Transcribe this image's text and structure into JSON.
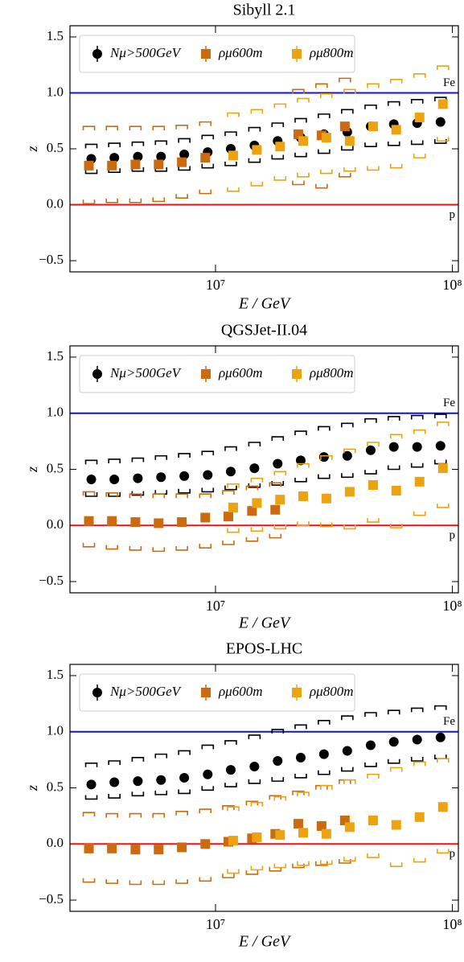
{
  "chart_data": [
    {
      "type": "scatter",
      "title": "Sibyll 2.1",
      "xlabel": "E / GeV",
      "ylabel": "z",
      "xscale": "log",
      "x": [
        2990000,
        3740000,
        4700000,
        5890000,
        7380000,
        9270000,
        11600000,
        14600000,
        18300000,
        22900000,
        28700000,
        36000000,
        45200000,
        56600000,
        71000000,
        89100000
      ],
      "xlim": [
        2430000,
        106000000
      ],
      "xticks": [
        {
          "value": 10000000,
          "label": "10⁷"
        },
        {
          "value": 100000000,
          "label": "10⁸"
        }
      ],
      "ylim": [
        -0.6,
        1.6
      ],
      "yticks": [
        {
          "value": -0.5,
          "label": "−0.5"
        },
        {
          "value": 0,
          "label": "0.0"
        },
        0.5,
        {
          "value": 1,
          "label": "1.0"
        },
        1.5
      ],
      "legend": "upper left",
      "ref_lines": [
        {
          "value": 1,
          "label": "Fe",
          "color": "#1010e0"
        },
        {
          "value": 0,
          "label": "p",
          "color": "#f01010"
        }
      ],
      "series": [
        {
          "name": "Nμ>500GeV",
          "color": "#000000",
          "marker": "circle",
          "values": [
            0.41,
            0.42,
            0.43,
            0.43,
            0.45,
            0.47,
            0.5,
            0.53,
            0.57,
            0.6,
            0.63,
            0.65,
            0.7,
            0.72,
            0.73,
            0.74
          ],
          "sys_high": [
            0.54,
            0.55,
            0.56,
            0.57,
            0.59,
            0.62,
            0.65,
            0.69,
            0.73,
            0.77,
            0.81,
            0.85,
            0.89,
            0.92,
            0.94,
            0.96
          ],
          "sys_low": [
            0.28,
            0.29,
            0.3,
            0.3,
            0.31,
            0.33,
            0.35,
            0.38,
            0.41,
            0.43,
            0.46,
            0.49,
            0.52,
            0.53,
            0.54,
            0.55
          ]
        },
        {
          "name": "ρμ600m",
          "color": "#cc6a10",
          "marker": "square",
          "values": [
            0.35,
            0.35,
            0.36,
            0.36,
            0.38,
            0.42,
            null,
            null,
            null,
            0.63,
            0.62,
            0.7,
            null,
            null,
            null,
            null
          ],
          "sys_high": [
            0.7,
            0.7,
            0.7,
            0.7,
            0.71,
            0.74,
            null,
            null,
            null,
            1.03,
            1.08,
            1.13,
            null,
            null,
            null,
            null
          ],
          "sys_low": [
            0.01,
            0.02,
            0.02,
            0.03,
            0.06,
            0.1,
            null,
            null,
            null,
            0.18,
            0.15,
            0.25,
            null,
            null,
            null,
            null
          ]
        },
        {
          "name": "ρμ800m",
          "color": "#eba312",
          "marker": "square",
          "values": [
            null,
            null,
            null,
            null,
            null,
            null,
            0.44,
            0.49,
            0.52,
            0.57,
            0.6,
            0.57,
            0.7,
            0.67,
            0.78,
            0.9
          ],
          "sys_high": [
            null,
            null,
            null,
            null,
            null,
            null,
            0.82,
            0.85,
            0.9,
            0.95,
            0.99,
            1.03,
            1.08,
            1.12,
            1.17,
            1.24
          ],
          "sys_low": [
            null,
            null,
            null,
            null,
            null,
            null,
            0.12,
            0.17,
            0.22,
            0.25,
            0.28,
            0.3,
            0.31,
            0.33,
            0.42,
            0.57
          ]
        }
      ]
    },
    {
      "type": "scatter",
      "title": "QGSJet-II.04",
      "xlabel": "E / GeV",
      "ylabel": "z",
      "xscale": "log",
      "x": [
        2990000,
        3740000,
        4700000,
        5890000,
        7380000,
        9270000,
        11600000,
        14600000,
        18300000,
        22900000,
        28700000,
        36000000,
        45200000,
        56600000,
        71000000,
        89100000
      ],
      "xlim": [
        2430000,
        106000000
      ],
      "xticks": [
        {
          "value": 10000000,
          "label": "10⁷"
        },
        {
          "value": 100000000,
          "label": "10⁸"
        }
      ],
      "ylim": [
        -0.6,
        1.6
      ],
      "yticks": [
        {
          "value": -0.5,
          "label": "−0.5"
        },
        {
          "value": 0,
          "label": "0.0"
        },
        0.5,
        {
          "value": 1,
          "label": "1.0"
        },
        1.5
      ],
      "legend": "upper left",
      "ref_lines": [
        {
          "value": 1,
          "label": "Fe",
          "color": "#1010e0"
        },
        {
          "value": 0,
          "label": "p",
          "color": "#f01010"
        }
      ],
      "series": [
        {
          "name": "Nμ>500GeV",
          "color": "#000000",
          "marker": "circle",
          "values": [
            0.41,
            0.41,
            0.42,
            0.43,
            0.44,
            0.45,
            0.48,
            0.51,
            0.55,
            0.58,
            0.61,
            0.62,
            0.67,
            0.7,
            0.7,
            0.71
          ],
          "sys_high": [
            0.58,
            0.59,
            0.6,
            0.62,
            0.64,
            0.66,
            0.7,
            0.74,
            0.79,
            0.84,
            0.88,
            0.91,
            0.95,
            0.97,
            0.98,
            0.99
          ],
          "sys_low": [
            0.26,
            0.26,
            0.27,
            0.28,
            0.29,
            0.3,
            0.32,
            0.34,
            0.36,
            0.39,
            0.42,
            0.43,
            0.46,
            0.5,
            0.52,
            0.55
          ]
        },
        {
          "name": "ρμ600m",
          "color": "#cc6a10",
          "marker": "square",
          "values": [
            0.04,
            0.04,
            0.03,
            0.02,
            0.03,
            0.07,
            0.08,
            0.13,
            0.14,
            null,
            null,
            null,
            null,
            null,
            null,
            null
          ],
          "sys_high": [
            0.3,
            0.29,
            0.28,
            0.28,
            0.28,
            0.28,
            0.31,
            0.35,
            0.38,
            null,
            null,
            null,
            null,
            null,
            null,
            null
          ],
          "sys_low": [
            -0.19,
            -0.21,
            -0.22,
            -0.23,
            -0.22,
            -0.2,
            -0.17,
            -0.14,
            -0.11,
            null,
            null,
            null,
            null,
            null,
            null,
            null
          ]
        },
        {
          "name": "ρμ800m",
          "color": "#eba312",
          "marker": "square",
          "values": [
            null,
            null,
            null,
            null,
            null,
            null,
            0.16,
            0.2,
            0.23,
            0.26,
            0.24,
            0.3,
            0.36,
            0.31,
            0.39,
            0.51
          ],
          "sys_high": [
            null,
            null,
            null,
            null,
            null,
            null,
            0.37,
            0.42,
            0.48,
            0.55,
            0.62,
            0.68,
            0.74,
            0.81,
            0.85,
            0.92
          ],
          "sys_low": [
            null,
            null,
            null,
            null,
            null,
            null,
            -0.06,
            -0.05,
            -0.03,
            0.0,
            -0.01,
            -0.03,
            0.03,
            -0.02,
            0.09,
            0.16
          ]
        }
      ]
    },
    {
      "type": "scatter",
      "title": "EPOS-LHC",
      "xlabel": "E / GeV",
      "ylabel": "z",
      "xscale": "log",
      "x": [
        2990000,
        3740000,
        4700000,
        5890000,
        7380000,
        9270000,
        11600000,
        14600000,
        18300000,
        22900000,
        28700000,
        36000000,
        45200000,
        56600000,
        71000000,
        89100000
      ],
      "xlim": [
        2430000,
        106000000
      ],
      "xticks": [
        {
          "value": 10000000,
          "label": "10⁷"
        },
        {
          "value": 100000000,
          "label": "10⁸"
        }
      ],
      "ylim": [
        -0.6,
        1.6
      ],
      "yticks": [
        {
          "value": -0.5,
          "label": "−0.5"
        },
        {
          "value": 0,
          "label": "0.0"
        },
        0.5,
        {
          "value": 1,
          "label": "1.0"
        },
        1.5
      ],
      "legend": "upper left",
      "ref_lines": [
        {
          "value": 1,
          "label": "Fe",
          "color": "#1010e0"
        },
        {
          "value": 0,
          "label": "p",
          "color": "#f01010"
        }
      ],
      "series": [
        {
          "name": "Nμ>500GeV",
          "color": "#000000",
          "marker": "circle",
          "values": [
            0.53,
            0.55,
            0.56,
            0.57,
            0.59,
            0.62,
            0.66,
            0.69,
            0.74,
            0.77,
            0.8,
            0.83,
            0.88,
            0.91,
            0.93,
            0.95
          ],
          "sys_high": [
            0.72,
            0.74,
            0.77,
            0.8,
            0.83,
            0.88,
            0.92,
            0.97,
            1.02,
            1.06,
            1.1,
            1.14,
            1.17,
            1.19,
            1.21,
            1.23
          ],
          "sys_low": [
            0.4,
            0.41,
            0.43,
            0.44,
            0.45,
            0.48,
            0.51,
            0.54,
            0.56,
            0.59,
            0.62,
            0.65,
            0.69,
            0.72,
            0.74,
            0.76
          ]
        },
        {
          "name": "ρμ600m",
          "color": "#cc6a10",
          "marker": "square",
          "values": [
            -0.04,
            -0.04,
            -0.05,
            -0.05,
            -0.03,
            0.0,
            0.02,
            0.05,
            0.09,
            0.18,
            0.16,
            0.21,
            null,
            null,
            null,
            null
          ],
          "sys_high": [
            0.28,
            0.27,
            0.27,
            0.27,
            0.29,
            0.31,
            0.34,
            0.38,
            0.43,
            0.47,
            0.52,
            0.57,
            null,
            null,
            null,
            null
          ],
          "sys_low": [
            -0.34,
            -0.35,
            -0.36,
            -0.36,
            -0.35,
            -0.33,
            -0.3,
            -0.27,
            -0.24,
            -0.21,
            -0.19,
            -0.17,
            null,
            null,
            null,
            null
          ]
        },
        {
          "name": "ρμ800m",
          "color": "#eba312",
          "marker": "square",
          "values": [
            null,
            null,
            null,
            null,
            null,
            null,
            0.03,
            0.06,
            0.08,
            0.1,
            0.09,
            0.15,
            0.21,
            0.17,
            0.24,
            0.33
          ],
          "sys_high": [
            null,
            null,
            null,
            null,
            null,
            null,
            0.33,
            0.37,
            0.42,
            0.46,
            0.52,
            0.57,
            0.62,
            0.68,
            0.73,
            0.76
          ],
          "sys_low": [
            null,
            null,
            null,
            null,
            null,
            null,
            -0.26,
            -0.23,
            -0.21,
            -0.19,
            -0.18,
            -0.15,
            -0.12,
            -0.2,
            -0.16,
            -0.08
          ]
        }
      ]
    }
  ]
}
